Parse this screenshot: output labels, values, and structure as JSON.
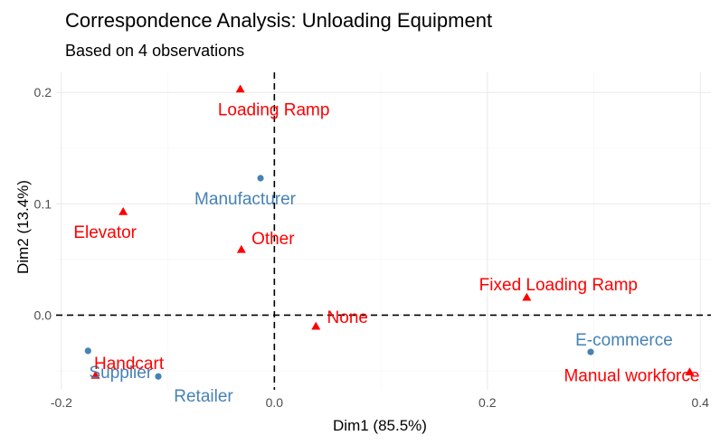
{
  "chart_data": {
    "type": "scatter",
    "title": "Correspondence Analysis: Unloading Equipment",
    "subtitle": "Based on 4 observations",
    "xlabel": "Dim1 (85.5%)",
    "ylabel": "Dim2 (13.4%)",
    "xlim": [
      -0.205,
      0.41
    ],
    "ylim": [
      -0.067,
      0.218
    ],
    "xticks": [
      -0.2,
      0.0,
      0.2,
      0.4
    ],
    "xtick_labels": [
      "-0.2",
      "0.0",
      "0.2",
      "0.4"
    ],
    "yticks": [
      0.0,
      0.1,
      0.2
    ],
    "ytick_labels": [
      "0.0",
      "0.1",
      "0.2"
    ],
    "grid": true,
    "reference_lines": {
      "x": 0,
      "y": 0,
      "style": "dashed"
    },
    "series": [
      {
        "color": "#4682B4",
        "marker": "circle",
        "points": [
          {
            "label": "Manufacturer",
            "x": -0.013,
            "y": 0.123
          },
          {
            "label": "Supplier",
            "x": -0.175,
            "y": -0.032
          },
          {
            "label": "Retailer",
            "x": -0.109,
            "y": -0.055
          },
          {
            "label": "E-commerce",
            "x": 0.297,
            "y": -0.033
          }
        ]
      },
      {
        "color": "#FF0000",
        "marker": "triangle",
        "points": [
          {
            "label": "Loading Ramp",
            "x": -0.032,
            "y": 0.203
          },
          {
            "label": "Elevator",
            "x": -0.142,
            "y": 0.093
          },
          {
            "label": "Other",
            "x": -0.031,
            "y": 0.059
          },
          {
            "label": "Fixed Loading Ramp",
            "x": 0.237,
            "y": 0.016
          },
          {
            "label": "None",
            "x": 0.039,
            "y": -0.01
          },
          {
            "label": "Handcart",
            "x": -0.168,
            "y": -0.054
          },
          {
            "label": "Manual workforce",
            "x": 0.39,
            "y": -0.051
          }
        ]
      }
    ]
  }
}
